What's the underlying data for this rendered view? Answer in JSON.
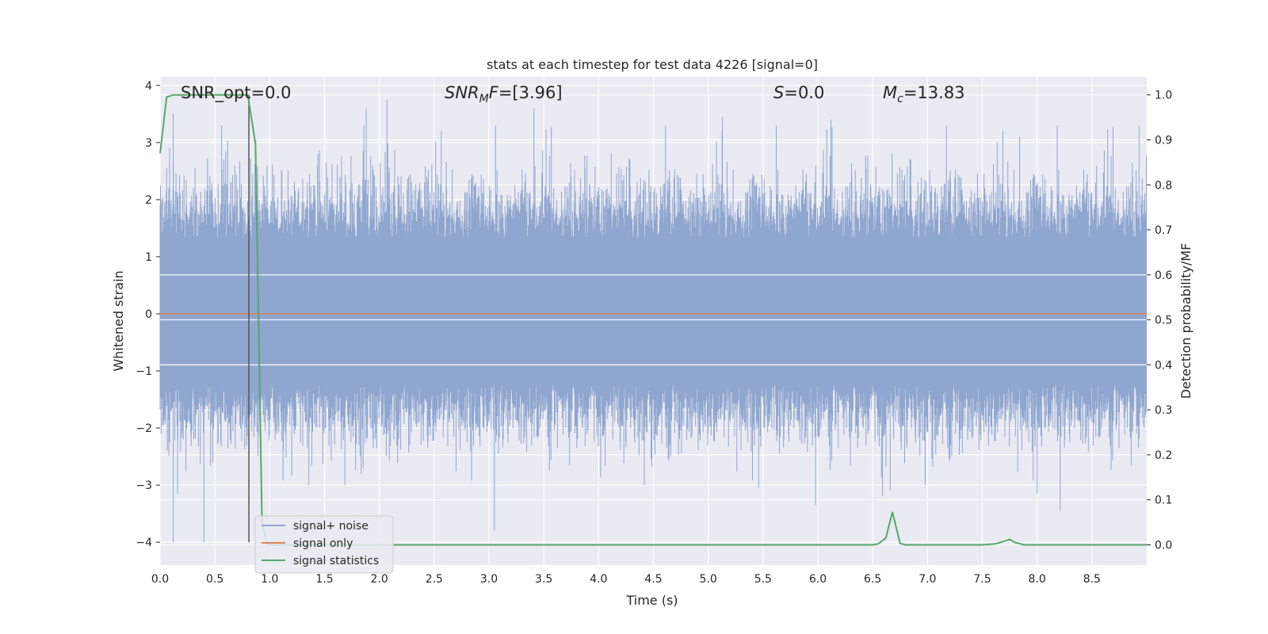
{
  "chart_data": {
    "type": "line",
    "title": "stats at each timestep for test data 4226 [signal=0]",
    "xlabel": "Time (s)",
    "ylabel": "Whitened strain",
    "y2label": "Detection probability/MF",
    "xlim": [
      0.0,
      9.0
    ],
    "ylim": [
      -4.4,
      4.15
    ],
    "y2lim": [
      -0.045,
      1.04
    ],
    "xticks": [
      "0.0",
      "0.5",
      "1.0",
      "1.5",
      "2.0",
      "2.5",
      "3.0",
      "3.5",
      "4.0",
      "4.5",
      "5.0",
      "5.5",
      "6.0",
      "6.5",
      "7.0",
      "7.5",
      "8.0",
      "8.5"
    ],
    "yticks": [
      "4",
      "3",
      "2",
      "1",
      "0",
      "−1",
      "−2",
      "−3",
      "−4"
    ],
    "y2ticks": [
      "1.0",
      "0.9",
      "0.8",
      "0.7",
      "0.6",
      "0.5",
      "0.4",
      "0.3",
      "0.2",
      "0.1",
      "0.0"
    ],
    "grid": true,
    "legend_placement": "lower-left",
    "annotations": {
      "snr_opt": "SNR_opt=0.0",
      "snr_mf": "=[3.96]",
      "s": "=0.0",
      "mc": "=13.83"
    },
    "series": [
      {
        "name": "signal+ noise",
        "color": "#8fa6cf",
        "note_amplitude_envelope": "dense noise between about -4 and 4",
        "spikes": [
          {
            "x": 0.06,
            "y": 2.55
          },
          {
            "x": 0.12,
            "y": -4.0
          },
          {
            "x": 0.12,
            "y": 3.5
          },
          {
            "x": 0.16,
            "y": -3.15
          },
          {
            "x": 0.4,
            "y": -4.0
          },
          {
            "x": 0.48,
            "y": -2.6
          },
          {
            "x": 1.44,
            "y": 2.8
          },
          {
            "x": 1.88,
            "y": 3.6
          },
          {
            "x": 2.07,
            "y": 3.75
          },
          {
            "x": 3.05,
            "y": -3.8
          },
          {
            "x": 3.41,
            "y": 3.6
          },
          {
            "x": 5.13,
            "y": 3.45
          },
          {
            "x": 5.46,
            "y": -3.05
          },
          {
            "x": 5.98,
            "y": -3.35
          },
          {
            "x": 6.12,
            "y": 3.4
          },
          {
            "x": 6.59,
            "y": -3.2
          },
          {
            "x": 6.66,
            "y": -3.1
          },
          {
            "x": 7.84,
            "y": 3.1
          },
          {
            "x": 8.0,
            "y": -3.15
          },
          {
            "x": 8.21,
            "y": -3.45
          },
          {
            "x": 8.93,
            "y": 3.3
          }
        ]
      },
      {
        "name": "signal only",
        "color": "#dd8452",
        "x": [
          0.0,
          9.0
        ],
        "y": [
          0.0,
          0.0
        ]
      },
      {
        "name": "signal statistics",
        "color": "#55a868",
        "axis": "right",
        "x": [
          0.0,
          0.06,
          0.12,
          0.2,
          0.3,
          0.4,
          0.5,
          0.6,
          0.7,
          0.8,
          0.87,
          0.93,
          0.98,
          1.05,
          1.5,
          2.0,
          3.0,
          4.0,
          5.0,
          6.0,
          6.5,
          6.55,
          6.62,
          6.68,
          6.75,
          6.8,
          7.5,
          7.62,
          7.7,
          7.75,
          7.8,
          7.88,
          8.5,
          9.0
        ],
        "y": [
          0.87,
          0.995,
          1.0,
          1.0,
          1.0,
          1.0,
          1.0,
          1.0,
          1.0,
          1.0,
          0.89,
          0.05,
          0.0,
          0.0,
          0.0,
          0.0,
          0.0,
          0.0,
          0.0,
          0.0,
          0.0,
          0.002,
          0.015,
          0.073,
          0.003,
          0.0,
          0.0,
          0.002,
          0.008,
          0.012,
          0.005,
          0.0,
          0.0,
          0.0
        ]
      }
    ],
    "marker_line": {
      "x": 0.81,
      "color": "#555555"
    }
  }
}
